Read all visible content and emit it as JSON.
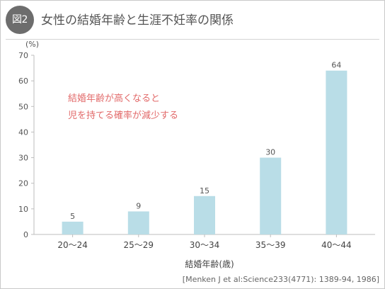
{
  "header": {
    "badge": "図2",
    "title": "女性の結婚年齢と生涯不妊率の関係"
  },
  "annotation": {
    "line1": "結婚年齢が高くなると",
    "line2": "児を持てる確率が減少する"
  },
  "source": "[Menken J et al:Science233(4771): 1389-94, 1986]",
  "colors": {
    "bar": "#b9dde7",
    "annotation": "#e26a6a",
    "badge": "#6d6d6d"
  },
  "chart_data": {
    "type": "bar",
    "title": "女性の結婚年齢と生涯不妊率の関係",
    "ylabel": "(%)",
    "xlabel": "結婚年齢(歳)",
    "categories": [
      "20〜24",
      "25〜29",
      "30〜34",
      "35〜39",
      "40〜44"
    ],
    "values": [
      5,
      9,
      15,
      30,
      64
    ],
    "ylim": [
      0,
      70
    ],
    "yticks": [
      0,
      10,
      20,
      30,
      40,
      50,
      60,
      70
    ],
    "grid": false
  }
}
